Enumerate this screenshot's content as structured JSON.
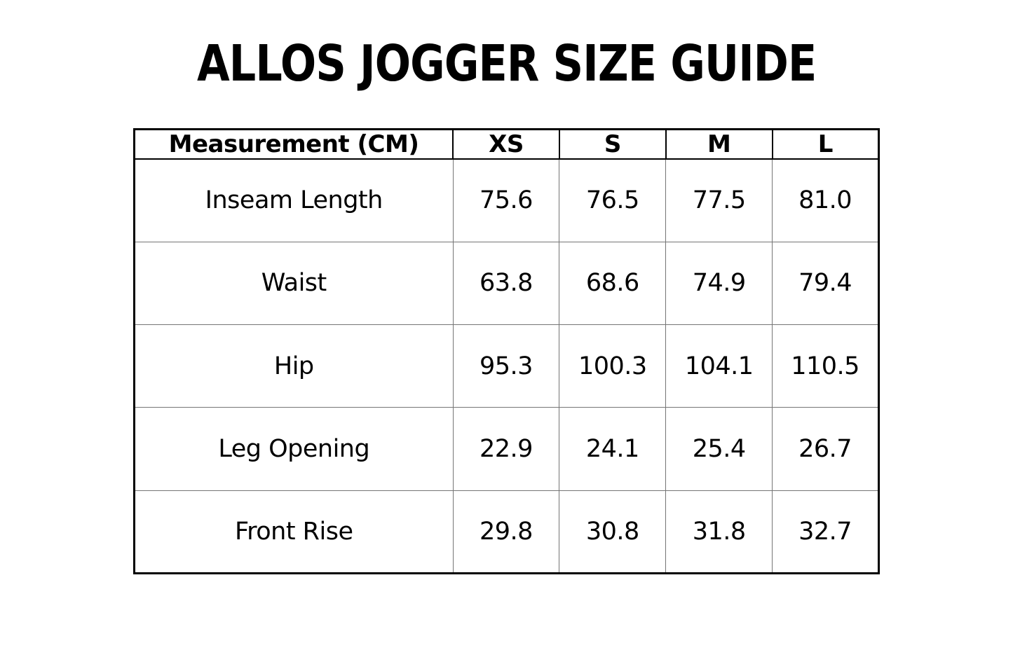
{
  "page": {
    "title": "ALLOS JOGGER SIZE GUIDE",
    "background_color": "#ffffff",
    "text_color": "#000000"
  },
  "table": {
    "header": [
      "Measurement (CM)",
      "XS",
      "S",
      "M",
      "L"
    ],
    "rows": [
      {
        "label": "Inseam Length",
        "values": [
          "75.6",
          "76.5",
          "77.5",
          "81.0"
        ]
      },
      {
        "label": "Waist",
        "values": [
          "63.8",
          "68.6",
          "74.9",
          "79.4"
        ]
      },
      {
        "label": "Hip",
        "values": [
          "95.3",
          "100.3",
          "104.1",
          "110.5"
        ]
      },
      {
        "label": "Leg Opening",
        "values": [
          "22.9",
          "24.1",
          "25.4",
          "26.7"
        ]
      },
      {
        "label": "Front Rise",
        "values": [
          "29.8",
          "30.8",
          "31.8",
          "32.7"
        ]
      }
    ],
    "border_outer_color": "#000000",
    "border_inner_color": "#757575"
  },
  "chart_data": {
    "type": "table",
    "title": "ALLOS JOGGER SIZE GUIDE",
    "units": "CM",
    "columns": [
      "Measurement (CM)",
      "XS",
      "S",
      "M",
      "L"
    ],
    "rows": [
      [
        "Inseam Length",
        75.6,
        76.5,
        77.5,
        81.0
      ],
      [
        "Waist",
        63.8,
        68.6,
        74.9,
        79.4
      ],
      [
        "Hip",
        95.3,
        100.3,
        104.1,
        110.5
      ],
      [
        "Leg Opening",
        22.9,
        24.1,
        25.4,
        26.7
      ],
      [
        "Front Rise",
        29.8,
        30.8,
        31.8,
        32.7
      ]
    ]
  }
}
